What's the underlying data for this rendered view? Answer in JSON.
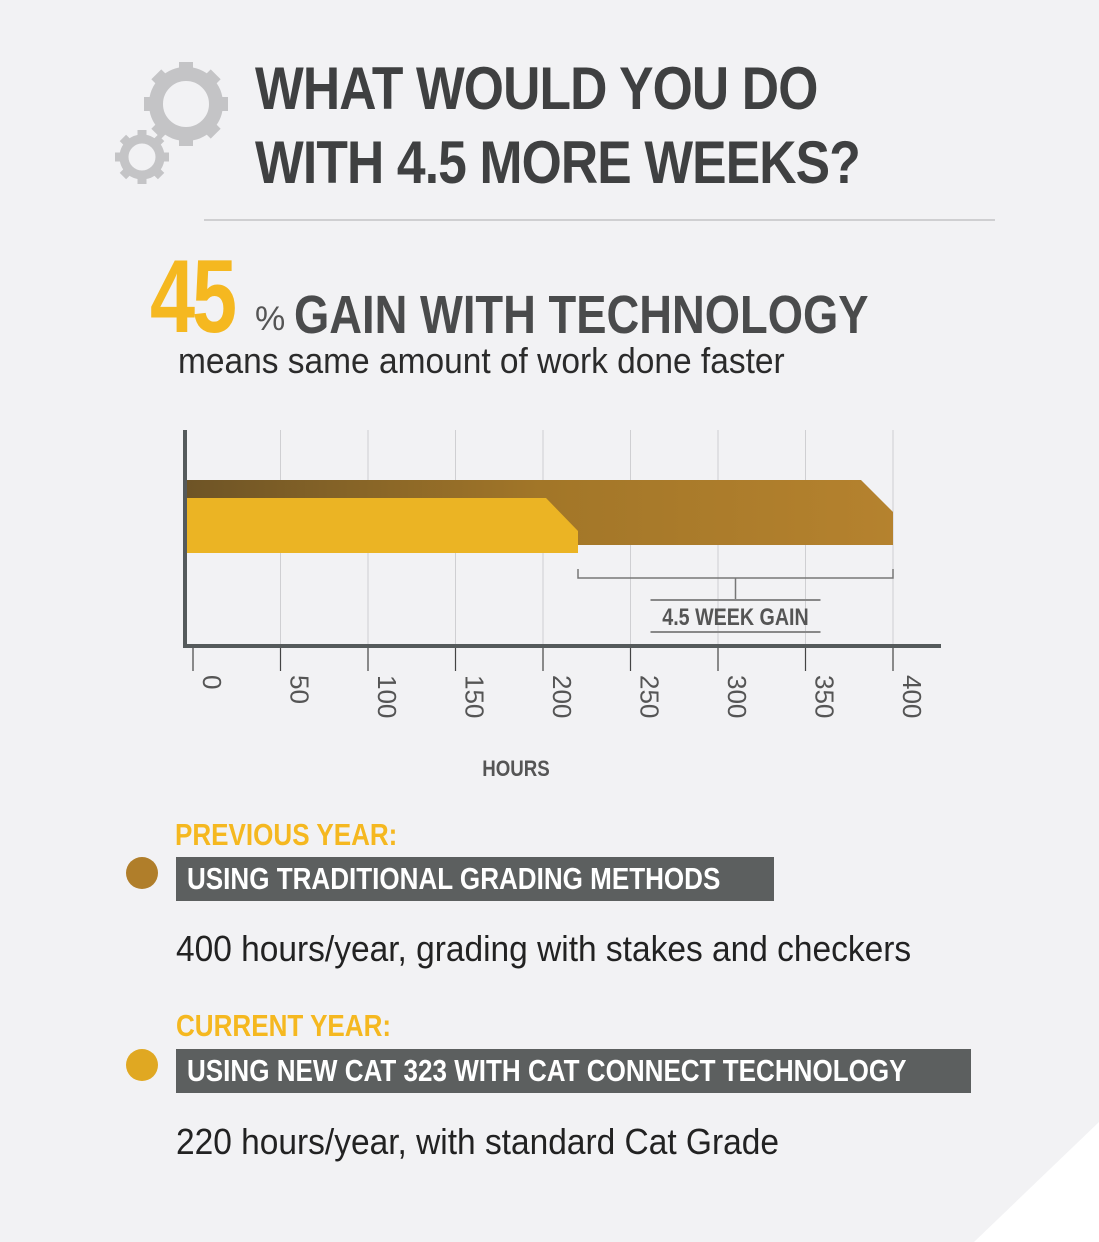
{
  "header": {
    "title_line1": "WHAT WOULD YOU DO",
    "title_line2": "WITH 4.5 MORE WEEKS?",
    "icon": "gears-icon"
  },
  "headline": {
    "number": "45",
    "percent_sign": "%",
    "text": "GAIN WITH TECHNOLOGY",
    "subtitle": "means same amount of work done faster"
  },
  "chart_data": {
    "type": "bar",
    "orientation": "horizontal",
    "series": [
      {
        "legend": "PREVIOUS YEAR",
        "value": 400,
        "color": "#b07e2a"
      },
      {
        "legend": "CURRENT YEAR",
        "value": 220,
        "color": "#ebb424"
      }
    ],
    "xlabel": "HOURS",
    "xlim": [
      0,
      400
    ],
    "xticks": [
      "0",
      "50",
      "100",
      "150",
      "200",
      "250",
      "300",
      "350",
      "400"
    ],
    "grid": true,
    "annotation": {
      "text": "4.5 WEEK GAIN",
      "from": 220,
      "to": 400
    }
  },
  "legend": [
    {
      "period": "PREVIOUS YEAR:",
      "method": "USING TRADITIONAL GRADING METHODS",
      "description": "400 hours/year, grading with stakes and checkers",
      "color": "#b07e2a"
    },
    {
      "period": "CURRENT YEAR:",
      "method": "USING NEW CAT 323 WITH CAT CONNECT TECHNOLOGY",
      "description": "220 hours/year, with standard Cat Grade",
      "color": "#e0a822"
    }
  ],
  "colors": {
    "accent": "#f5b820",
    "text_dark": "#3f4041",
    "label_box": "#5c5f5f",
    "background": "#f2f2f4"
  }
}
